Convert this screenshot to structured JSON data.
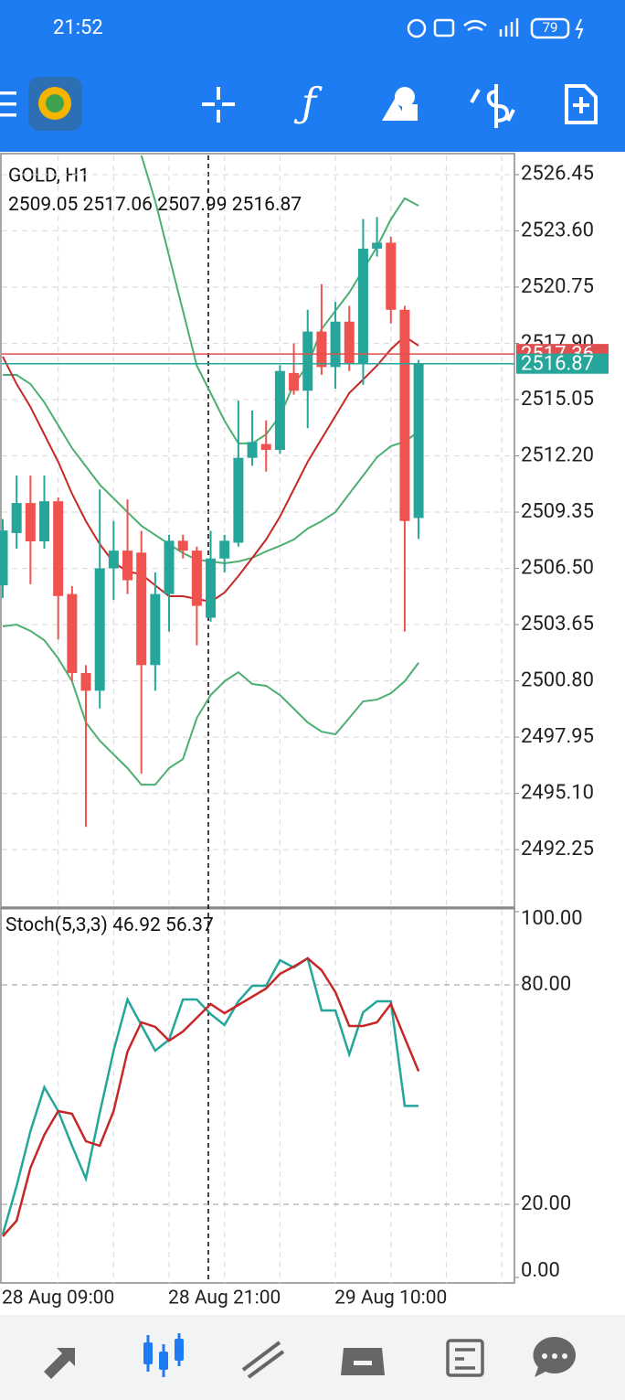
{
  "status_bar": {
    "time": "21:52",
    "battery": "79"
  },
  "chart_data": [
    {
      "type": "candlestick",
      "title": "GOLD, H1",
      "categories": [
        "28 Aug 09:00",
        null,
        null,
        null,
        null,
        null,
        null,
        null,
        null,
        null,
        null,
        null,
        "28 Aug 21:00",
        null,
        null,
        null,
        null,
        null,
        null,
        null,
        null,
        null,
        null,
        null,
        "29 Aug 10:00",
        null,
        null,
        null,
        null,
        null,
        null
      ],
      "open": [
        2505.64,
        2508.29,
        2509.81,
        2507.87,
        2509.9,
        2505.2,
        2501.2,
        2500.3,
        2506.5,
        2507.4,
        2507.3,
        2501.6,
        2505.2,
        2507.9,
        2507.4,
        2504.0,
        2507.0,
        2507.8,
        2512.1,
        2512.8,
        2512.5,
        2516.4,
        2515.5,
        2518.5,
        2516.7,
        2519.0,
        2516.9,
        2522.7,
        2523.0,
        2519.6,
        2509.05
      ],
      "high": [
        2509.0,
        2511.2,
        2511.2,
        2511.2,
        2510.1,
        2505.6,
        2501.6,
        2510.5,
        2508.9,
        2510.0,
        2508.4,
        2506.3,
        2508.2,
        2508.2,
        2507.6,
        2508.4,
        2508.2,
        2515.0,
        2514.5,
        2514.0,
        2516.8,
        2517.9,
        2519.6,
        2520.9,
        2520.0,
        2519.8,
        2524.2,
        2524.3,
        2523.3,
        2519.8,
        2517.06
      ],
      "low": [
        2505.0,
        2507.5,
        2505.7,
        2507.5,
        2502.9,
        2500.8,
        2493.4,
        2499.4,
        2504.9,
        2505.2,
        2496.1,
        2500.3,
        2503.3,
        2507.0,
        2502.6,
        2503.8,
        2506.3,
        2507.6,
        2511.7,
        2511.4,
        2512.3,
        2515.3,
        2513.6,
        2516.3,
        2515.6,
        2516.5,
        2515.8,
        2522.3,
        2518.9,
        2503.3,
        2507.99
      ],
      "close": [
        2508.42,
        2509.81,
        2507.87,
        2509.9,
        2505.1,
        2501.2,
        2500.3,
        2506.5,
        2507.4,
        2505.9,
        2501.6,
        2505.2,
        2507.9,
        2507.4,
        2504.6,
        2507.0,
        2507.9,
        2512.1,
        2512.9,
        2512.5,
        2516.5,
        2515.5,
        2518.5,
        2516.7,
        2519.0,
        2516.9,
        2522.7,
        2523.0,
        2519.6,
        2508.9,
        2516.87
      ],
      "up_color": "#26a69a",
      "down_color": "#ef5350",
      "overlays": [
        {
          "color": "#4caf72",
          "values": [
            null,
            null,
            null,
            null,
            null,
            null,
            null,
            null,
            null,
            null,
            2527.42,
            2525.11,
            2522.33,
            2519.55,
            2516.77,
            2515.38,
            2513.98,
            2512.83,
            2512.83,
            2513.29,
            2514.22,
            2515.84,
            2516.77,
            2518.62,
            2519.55,
            2520.47,
            2521.63,
            2522.79,
            2524.18,
            2525.25,
            2524.87
          ]
        },
        {
          "color": "#4caf72",
          "values": [
            2516.3,
            2516.3,
            2515.84,
            2514.91,
            2513.75,
            2512.59,
            2511.67,
            2510.74,
            2510.05,
            2509.35,
            2508.66,
            2508.19,
            2507.73,
            2507.27,
            2506.94,
            2506.85,
            2506.76,
            2506.85,
            2507.03,
            2507.36,
            2507.64,
            2507.96,
            2508.52,
            2508.89,
            2509.35,
            2510.28,
            2511.2,
            2512.13,
            2512.69,
            2512.92,
            2513.43
          ]
        },
        {
          "color": "#4caf72",
          "values": [
            2503.56,
            2503.65,
            2503.33,
            2502.86,
            2501.94,
            2500.78,
            2498.69,
            2497.77,
            2497.07,
            2496.38,
            2495.54,
            2495.54,
            2496.38,
            2496.84,
            2498.92,
            2500.08,
            2500.78,
            2501.24,
            2500.64,
            2500.55,
            2500.08,
            2499.39,
            2498.69,
            2498.23,
            2498.09,
            2498.92,
            2499.76,
            2499.85,
            2500.17,
            2500.78,
            2501.72
          ]
        },
        {
          "color": "#c62828",
          "values": [
            2517.23,
            2515.84,
            2514.68,
            2513.29,
            2511.9,
            2510.28,
            2508.89,
            2507.73,
            2506.8,
            2506.34,
            2506.2,
            2505.64,
            2505.09,
            2505.09,
            2504.95,
            2504.81,
            2505.27,
            2506.11,
            2507.03,
            2507.96,
            2509.12,
            2510.51,
            2511.9,
            2513.06,
            2514.22,
            2515.38,
            2516.07,
            2516.77,
            2517.6,
            2518.25,
            2517.78
          ]
        }
      ],
      "price_lines": [
        {
          "value": 2517.36,
          "color": "#e04f4f"
        },
        {
          "value": 2516.87,
          "color": "#26a69a"
        }
      ],
      "ylim": [
        2489.43,
        2527.42
      ],
      "yticks": [
        2526.45,
        {
          "value": 2523.6,
          "label": "2523.60"
        },
        2520.75,
        {
          "value": 2517.9,
          "label": "2517.90"
        },
        2515.05,
        {
          "value": 2512.2,
          "label": "2512.20"
        },
        2509.35,
        {
          "value": 2506.5,
          "label": "2506.50"
        },
        2503.65,
        {
          "value": 2500.8,
          "label": "2500.80"
        },
        2497.95,
        {
          "value": 2495.1,
          "label": "2495.10"
        },
        2492.25
      ],
      "grid": true
    },
    {
      "type": "line",
      "title": "Stoch(5,3,3)",
      "series": [
        {
          "color": "#26a69a",
          "values": [
            11.75,
            25,
            40,
            52,
            45.5,
            36,
            27,
            45,
            62,
            76,
            69,
            62,
            65,
            76,
            76,
            72,
            69,
            75.5,
            79.75,
            79.75,
            86.75,
            84.75,
            87.25,
            73,
            73,
            61,
            72.5,
            75.5,
            75.5,
            46.92,
            46.92
          ]
        },
        {
          "color": "#c62828",
          "values": [
            11.25,
            15.5,
            30,
            39,
            45.5,
            44.75,
            37.25,
            36,
            45.5,
            61.75,
            69.75,
            68.5,
            64.75,
            67.25,
            71,
            74.75,
            72.25,
            74.5,
            76.75,
            79,
            83,
            85,
            87.25,
            84,
            78,
            68.75,
            68.75,
            69.75,
            74.75,
            65.5,
            56.37
          ]
        }
      ],
      "ylim": [
        0,
        100
      ],
      "yticks": [
        {
          "value": 100,
          "label": "100.00"
        },
        {
          "value": 80,
          "label": "80.00"
        },
        {
          "value": 20,
          "label": "20.00"
        },
        {
          "value": 0,
          "label": "0.00"
        }
      ]
    }
  ]
}
